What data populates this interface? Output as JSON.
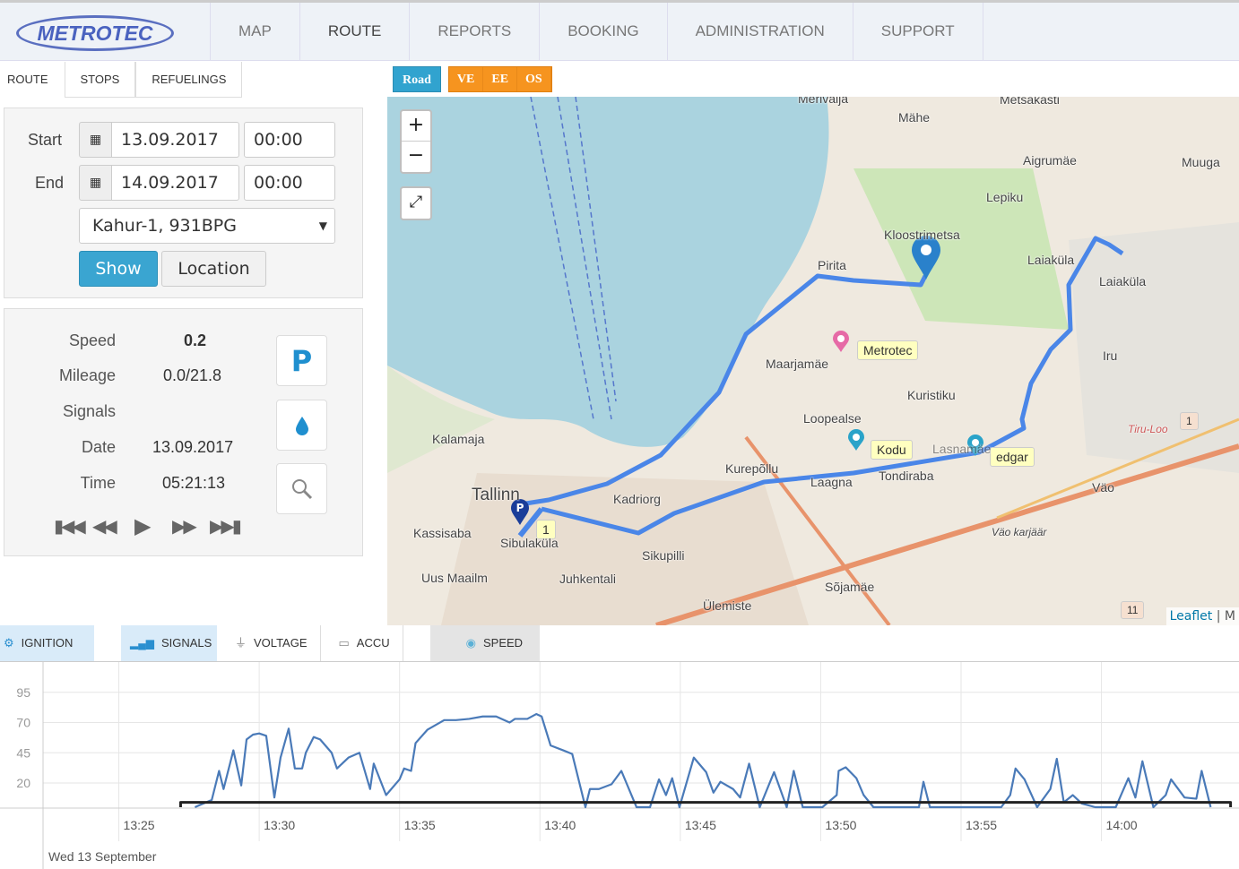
{
  "header": {
    "logo": "METROTEC",
    "nav": [
      "MAP",
      "ROUTE",
      "REPORTS",
      "BOOKING",
      "ADMINISTRATION",
      "SUPPORT"
    ],
    "active_nav": "ROUTE"
  },
  "subtabs": [
    "ROUTE",
    "STOPS",
    "REFUELINGS"
  ],
  "layers": {
    "road": "Road",
    "others": [
      "VE",
      "EE",
      "OS"
    ]
  },
  "form": {
    "start_label": "Start",
    "end_label": "End",
    "start_date": "13.09.2017",
    "start_time": "00:00",
    "end_date": "14.09.2017",
    "end_time": "00:00",
    "vehicle": "Kahur-1, 931BPG",
    "show": "Show",
    "location": "Location"
  },
  "info": {
    "speed_label": "Speed",
    "speed": "0.2",
    "mileage_label": "Mileage",
    "mileage": "0.0/21.8",
    "signals_label": "Signals",
    "date_label": "Date",
    "date": "13.09.2017",
    "time_label": "Time",
    "time": "05:21:13",
    "parking_glyph": "P"
  },
  "map": {
    "labels": [
      "Merivälja",
      "Mähe",
      "Metsakasti",
      "Aigrumäe",
      "Muuga",
      "Lepiku",
      "Kloostrimetsa",
      "Laiaküla",
      "Laiaküla",
      "Pirita",
      "Maarjamäe",
      "Iru",
      "Kuristiku",
      "Loopealse",
      "Kalamaja",
      "Kurepõllu",
      "Lasnamäe",
      "Tondiraba",
      "Tallinn",
      "Kadriorg",
      "Laagna",
      "Kassisaba",
      "Sibulaküla",
      "Väo",
      "Väo karjäär",
      "Sikupilli",
      "Uus Maailm",
      "Juhkentali",
      "Sõjamäe",
      "Ülemiste",
      "Tiru-Loo"
    ],
    "tips": [
      "Metrotec",
      "Kodu",
      "edgar",
      "1"
    ],
    "road_shields": [
      "1",
      "11"
    ],
    "attribution": [
      "Leaflet",
      "M"
    ],
    "zoom_in": "+",
    "zoom_out": "−",
    "route_color": "#4a86e8"
  },
  "chart_tabs": [
    {
      "label": "IGNITION",
      "icon": "engine-icon",
      "active": true
    },
    {
      "label": "SIGNALS",
      "icon": "signal-bars-icon",
      "active": true
    },
    {
      "label": "VOLTAGE",
      "icon": "plug-icon",
      "active": false
    },
    {
      "label": "ACCU",
      "icon": "battery-icon",
      "active": false
    },
    {
      "label": "SPEED",
      "icon": "speedometer-icon",
      "active": true
    }
  ],
  "chart_data": {
    "type": "line",
    "title": "",
    "xlabel": "Wed 13 September",
    "ylabel": "",
    "yticks": [
      20,
      45,
      70,
      95
    ],
    "ylim": [
      0,
      120
    ],
    "xticks": [
      "13:25",
      "13:30",
      "13:35",
      "13:40",
      "13:45",
      "13:50",
      "13:55",
      "14:00"
    ],
    "x_unit": "minutes after 13:25",
    "xlim": [
      -2.7,
      39.9
    ],
    "series": [
      {
        "name": "speed",
        "color": "#4a7ab8",
        "points": [
          [
            2.71,
            0
          ],
          [
            3.31,
            6
          ],
          [
            3.57,
            30
          ],
          [
            3.73,
            15
          ],
          [
            4.08,
            47
          ],
          [
            4.36,
            18
          ],
          [
            4.55,
            56
          ],
          [
            4.78,
            60
          ],
          [
            5.0,
            61
          ],
          [
            5.25,
            59
          ],
          [
            5.54,
            8
          ],
          [
            5.76,
            41
          ],
          [
            6.05,
            65
          ],
          [
            6.27,
            32
          ],
          [
            6.53,
            32
          ],
          [
            6.66,
            45
          ],
          [
            6.94,
            58
          ],
          [
            7.17,
            56
          ],
          [
            7.58,
            45
          ],
          [
            7.77,
            32
          ],
          [
            8.18,
            41
          ],
          [
            8.57,
            45
          ],
          [
            8.95,
            15
          ],
          [
            9.08,
            36
          ],
          [
            9.52,
            10
          ],
          [
            10.0,
            23
          ],
          [
            10.16,
            32
          ],
          [
            10.41,
            30
          ],
          [
            10.57,
            53
          ],
          [
            10.99,
            64
          ],
          [
            11.59,
            72
          ],
          [
            12.01,
            72
          ],
          [
            12.48,
            73
          ],
          [
            12.96,
            75
          ],
          [
            13.44,
            75
          ],
          [
            13.92,
            70
          ],
          [
            14.11,
            73
          ],
          [
            14.55,
            73
          ],
          [
            14.87,
            77
          ],
          [
            15.06,
            75
          ],
          [
            15.38,
            51
          ],
          [
            15.83,
            47
          ],
          [
            16.15,
            44
          ],
          [
            16.62,
            0
          ],
          [
            16.78,
            15
          ],
          [
            17.1,
            15
          ],
          [
            17.55,
            19
          ],
          [
            17.9,
            30
          ],
          [
            18.44,
            0
          ],
          [
            18.92,
            0
          ],
          [
            19.24,
            23
          ],
          [
            19.49,
            10
          ],
          [
            19.71,
            24
          ],
          [
            19.97,
            0
          ],
          [
            20.48,
            41
          ],
          [
            20.92,
            29
          ],
          [
            21.18,
            12
          ],
          [
            21.43,
            21
          ],
          [
            21.88,
            15
          ],
          [
            22.13,
            8
          ],
          [
            22.45,
            36
          ],
          [
            22.83,
            0
          ],
          [
            23.34,
            29
          ],
          [
            23.79,
            0
          ],
          [
            24.04,
            30
          ],
          [
            24.36,
            0
          ],
          [
            25.06,
            0
          ],
          [
            25.57,
            10
          ],
          [
            25.64,
            30
          ],
          [
            25.89,
            33
          ],
          [
            26.27,
            24
          ],
          [
            26.53,
            10
          ],
          [
            26.88,
            0
          ],
          [
            28.5,
            0
          ],
          [
            28.66,
            21
          ],
          [
            28.89,
            0
          ],
          [
            31.43,
            0
          ],
          [
            31.75,
            10
          ],
          [
            31.94,
            32
          ],
          [
            32.26,
            23
          ],
          [
            32.71,
            0
          ],
          [
            33.18,
            15
          ],
          [
            33.41,
            40
          ],
          [
            33.66,
            4
          ],
          [
            33.98,
            10
          ],
          [
            34.3,
            3
          ],
          [
            34.78,
            0
          ],
          [
            35.51,
            0
          ],
          [
            35.96,
            24
          ],
          [
            36.21,
            8
          ],
          [
            36.46,
            38
          ],
          [
            36.85,
            0
          ],
          [
            37.29,
            10
          ],
          [
            37.48,
            23
          ],
          [
            37.96,
            8
          ],
          [
            38.38,
            7
          ],
          [
            38.57,
            30
          ],
          [
            38.89,
            0
          ]
        ]
      },
      {
        "name": "ignition",
        "color": "#222",
        "points": [
          [
            2.2,
            0
          ],
          [
            2.2,
            4
          ],
          [
            39.6,
            4
          ],
          [
            39.6,
            0
          ]
        ]
      }
    ]
  }
}
